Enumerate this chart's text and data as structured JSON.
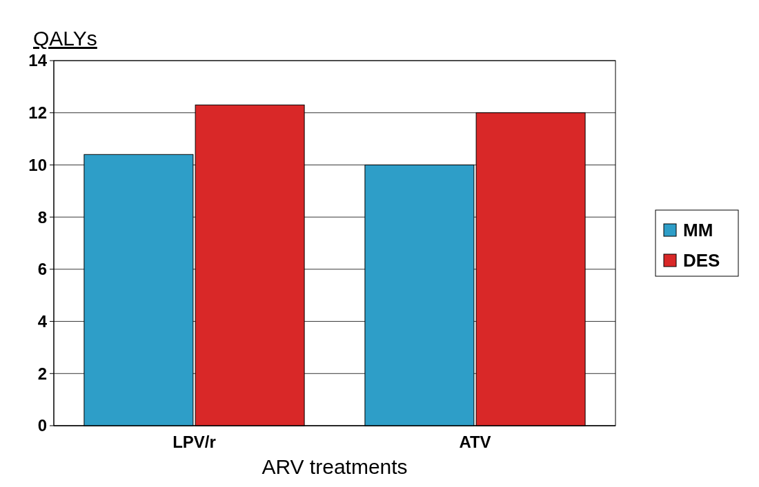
{
  "chart_data": {
    "type": "bar",
    "ylabel": "QALYs",
    "xlabel": "ARV treatments",
    "categories": [
      "LPV/r",
      "ATV"
    ],
    "series": [
      {
        "name": "MM",
        "color": "#2e9ec8",
        "values": [
          10.4,
          10.0
        ]
      },
      {
        "name": "DES",
        "color": "#d92828",
        "values": [
          12.3,
          12.0
        ]
      }
    ],
    "ylim": [
      0,
      14
    ],
    "yticks": [
      0,
      2,
      4,
      6,
      8,
      10,
      12,
      14
    ],
    "grid": "y",
    "legend": "right"
  }
}
